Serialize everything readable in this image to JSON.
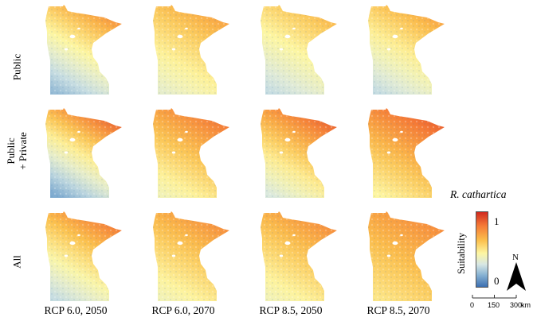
{
  "figure": {
    "row_labels": [
      {
        "line1": "Public",
        "line2": ""
      },
      {
        "line1": "Public",
        "line2": "+ Private"
      },
      {
        "line1": "All",
        "line2": ""
      }
    ],
    "column_labels": [
      "RCP 6.0, 2050",
      "RCP 6.0, 2070",
      "RCP 8.5, 2050",
      "RCP 8.5, 2070"
    ],
    "panels": [
      {
        "row": 0,
        "col": 0,
        "north_suitability": 0.8,
        "south_suitability": 0.2
      },
      {
        "row": 0,
        "col": 1,
        "north_suitability": 0.75,
        "south_suitability": 0.4
      },
      {
        "row": 0,
        "col": 2,
        "north_suitability": 0.7,
        "south_suitability": 0.3
      },
      {
        "row": 0,
        "col": 3,
        "north_suitability": 0.75,
        "south_suitability": 0.3
      },
      {
        "row": 1,
        "col": 0,
        "north_suitability": 0.9,
        "south_suitability": 0.15
      },
      {
        "row": 1,
        "col": 1,
        "north_suitability": 0.85,
        "south_suitability": 0.45
      },
      {
        "row": 1,
        "col": 2,
        "north_suitability": 0.9,
        "south_suitability": 0.35
      },
      {
        "row": 1,
        "col": 3,
        "north_suitability": 0.9,
        "south_suitability": 0.5
      },
      {
        "row": 2,
        "col": 0,
        "north_suitability": 0.85,
        "south_suitability": 0.3
      },
      {
        "row": 2,
        "col": 1,
        "north_suitability": 0.8,
        "south_suitability": 0.45
      },
      {
        "row": 2,
        "col": 2,
        "north_suitability": 0.8,
        "south_suitability": 0.45
      },
      {
        "row": 2,
        "col": 3,
        "north_suitability": 0.8,
        "south_suitability": 0.55
      }
    ]
  },
  "legend": {
    "species": "R. cathartica",
    "axis_label": "Suitability",
    "max_label": "1",
    "min_label": "0",
    "colors": [
      "#d0291f",
      "#f57a36",
      "#fbc04d",
      "#fdf6a2",
      "#d7e7e4",
      "#88b3d3",
      "#3c6fb1"
    ]
  },
  "north_arrow": {
    "label": "N"
  },
  "scale_bar": {
    "ticks": [
      "0",
      "150",
      "300"
    ],
    "unit": "km"
  }
}
